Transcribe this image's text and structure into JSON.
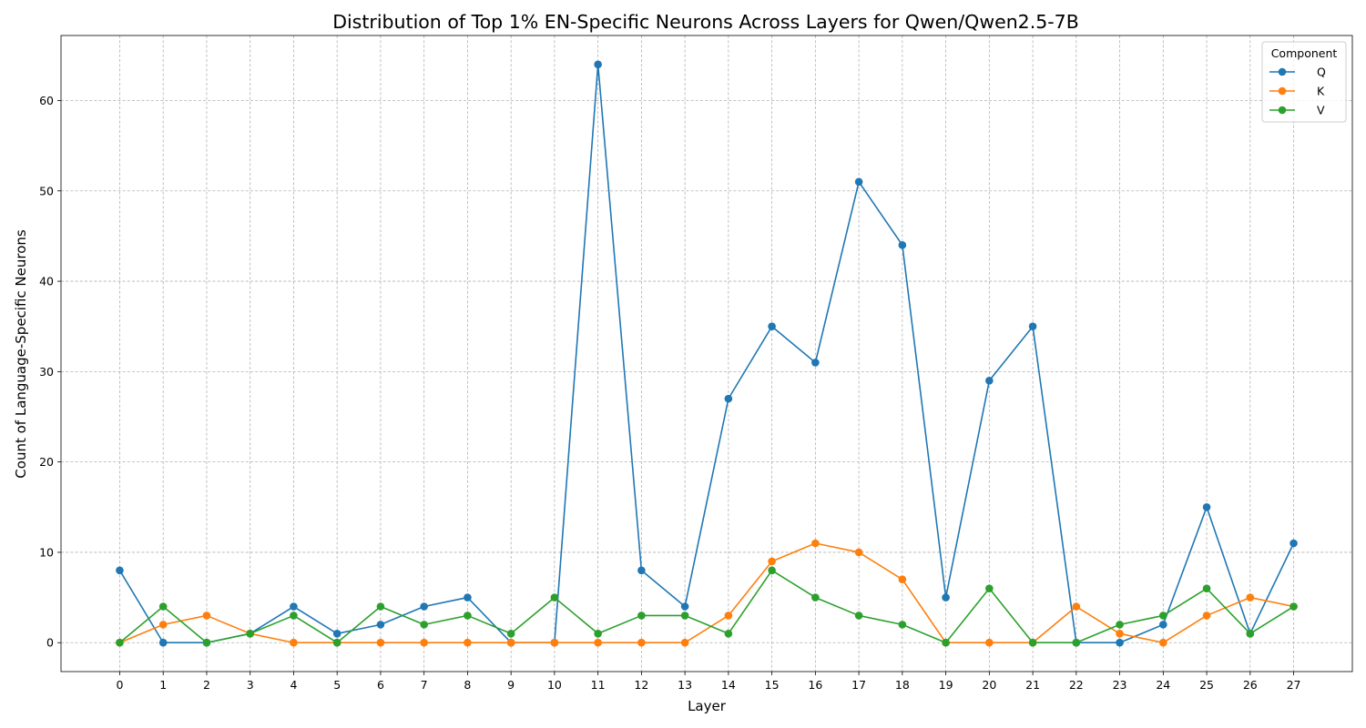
{
  "chart_data": {
    "type": "line",
    "title": "Distribution of Top 1% EN-Specific Neurons Across Layers for Qwen/Qwen2.5-7B",
    "xlabel": "Layer",
    "ylabel": "Count of Language-Specific Neurons",
    "x": [
      0,
      1,
      2,
      3,
      4,
      5,
      6,
      7,
      8,
      9,
      10,
      11,
      12,
      13,
      14,
      15,
      16,
      17,
      18,
      19,
      20,
      21,
      22,
      23,
      24,
      25,
      26,
      27
    ],
    "xlim": [
      -1.35,
      28.35
    ],
    "ylim": [
      -3.2,
      67.2
    ],
    "yticks": [
      0,
      10,
      20,
      30,
      40,
      50,
      60
    ],
    "grid": true,
    "legend": {
      "title": "Component",
      "placement": "top-right"
    },
    "series": [
      {
        "name": "Q",
        "color": "#1f77b4",
        "values": [
          8,
          0,
          0,
          1,
          4,
          1,
          2,
          4,
          5,
          0,
          0,
          64,
          8,
          4,
          27,
          35,
          31,
          51,
          44,
          5,
          29,
          35,
          0,
          0,
          2,
          15,
          1,
          11
        ]
      },
      {
        "name": "K",
        "color": "#ff7f0e",
        "values": [
          0,
          2,
          3,
          1,
          0,
          0,
          0,
          0,
          0,
          0,
          0,
          0,
          0,
          0,
          3,
          9,
          11,
          10,
          7,
          0,
          0,
          0,
          4,
          1,
          0,
          3,
          5,
          4
        ]
      },
      {
        "name": "V",
        "color": "#2ca02c",
        "values": [
          0,
          4,
          0,
          1,
          3,
          0,
          4,
          2,
          3,
          1,
          5,
          1,
          3,
          3,
          1,
          8,
          5,
          3,
          2,
          0,
          6,
          0,
          0,
          2,
          3,
          6,
          1,
          4
        ]
      }
    ]
  }
}
